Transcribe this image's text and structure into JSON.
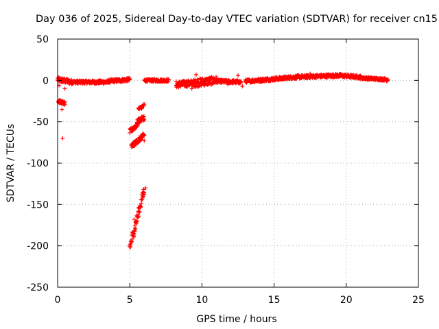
{
  "chart_data": {
    "type": "scatter",
    "title": "Day 036 of 2025, Sidereal Day-to-day VTEC variation (SDTVAR) for receiver cn15",
    "xlabel": "GPS time / hours",
    "ylabel": "SDTVAR / TECUs",
    "xlim": [
      0,
      25
    ],
    "ylim": [
      -250,
      50
    ],
    "x_ticks": [
      0,
      5,
      10,
      15,
      20,
      25
    ],
    "y_ticks": [
      50,
      0,
      -50,
      -100,
      -150,
      -200,
      -250
    ],
    "x_tick_labels": [
      "0",
      "5",
      "10",
      "15",
      "20",
      "25"
    ],
    "y_tick_labels": [
      "50",
      "0",
      "-50",
      "-100",
      "-150",
      "-200",
      "-250"
    ],
    "grid": true,
    "marker": "plus",
    "color": "#ff0000",
    "segments": [
      {
        "x0": 0.0,
        "x1": 1.0,
        "y0": 1,
        "y1": -2,
        "spread": 3
      },
      {
        "x0": 1.0,
        "x1": 3.5,
        "y0": -2,
        "y1": -2,
        "spread": 2
      },
      {
        "x0": 3.5,
        "x1": 5.0,
        "y0": -1,
        "y1": 1,
        "spread": 2
      },
      {
        "x0": 6.0,
        "x1": 7.7,
        "y0": 0,
        "y1": 0,
        "spread": 1.5
      },
      {
        "x0": 8.2,
        "x1": 9.5,
        "y0": -5,
        "y1": -3,
        "spread": 4
      },
      {
        "x0": 9.5,
        "x1": 11.0,
        "y0": -3,
        "y1": 0,
        "spread": 5
      },
      {
        "x0": 11.0,
        "x1": 12.7,
        "y0": -1,
        "y1": -2,
        "spread": 2
      },
      {
        "x0": 13.0,
        "x1": 14.5,
        "y0": -1,
        "y1": 1,
        "spread": 2
      },
      {
        "x0": 14.5,
        "x1": 16.5,
        "y0": 1,
        "y1": 4,
        "spread": 2
      },
      {
        "x0": 16.5,
        "x1": 19.5,
        "y0": 4,
        "y1": 6,
        "spread": 2
      },
      {
        "x0": 19.5,
        "x1": 21.0,
        "y0": 6,
        "y1": 4,
        "spread": 2
      },
      {
        "x0": 21.0,
        "x1": 22.9,
        "y0": 3,
        "y1": 1,
        "spread": 1.5
      },
      {
        "x0": 0.05,
        "x1": 0.5,
        "y0": -25,
        "y1": -28,
        "spread": 2
      },
      {
        "x0": 5.0,
        "x1": 5.6,
        "y0": -62,
        "y1": -52,
        "spread": 3
      },
      {
        "x0": 5.5,
        "x1": 6.0,
        "y0": -50,
        "y1": -45,
        "spread": 3
      },
      {
        "x0": 5.6,
        "x1": 6.0,
        "y0": -35,
        "y1": -30,
        "spread": 2
      },
      {
        "x0": 5.1,
        "x1": 6.0,
        "y0": -80,
        "y1": -66,
        "spread": 3
      },
      {
        "x0": 5.0,
        "x1": 6.0,
        "y0": -202,
        "y1": -132,
        "spread": 6
      }
    ],
    "isolated_points": [
      {
        "x": 0.3,
        "y": -35
      },
      {
        "x": 0.35,
        "y": -70
      },
      {
        "x": 0.5,
        "y": -10
      },
      {
        "x": 0.1,
        "y": -6
      },
      {
        "x": 5.0,
        "y": -200
      },
      {
        "x": 5.3,
        "y": -168
      },
      {
        "x": 6.0,
        "y": -73
      },
      {
        "x": 6.1,
        "y": -130
      },
      {
        "x": 9.6,
        "y": 7
      },
      {
        "x": 9.3,
        "y": -10
      },
      {
        "x": 12.5,
        "y": 6
      },
      {
        "x": 12.8,
        "y": -7
      },
      {
        "x": 11.8,
        "y": -5
      },
      {
        "x": 17.5,
        "y": 8
      },
      {
        "x": 22.8,
        "y": -1
      }
    ]
  }
}
